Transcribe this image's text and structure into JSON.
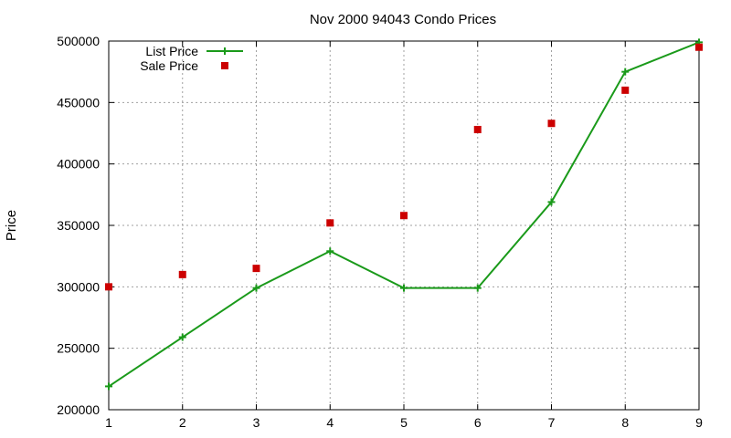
{
  "chart_data": {
    "type": "line",
    "title": "Nov 2000 94043 Condo Prices",
    "xlabel": "",
    "ylabel": "Price",
    "x": [
      1,
      2,
      3,
      4,
      5,
      6,
      7,
      8,
      9
    ],
    "xlim": [
      1,
      9
    ],
    "ylim": [
      200000,
      500000
    ],
    "xticks": [
      1,
      2,
      3,
      4,
      5,
      6,
      7,
      8,
      9
    ],
    "yticks": [
      200000,
      250000,
      300000,
      350000,
      400000,
      450000,
      500000
    ],
    "grid": true,
    "legend_position": "top-left",
    "series": [
      {
        "name": "List Price",
        "style": "linespoints",
        "marker": "plus",
        "color": "#1a9a1a",
        "values": [
          219000,
          259000,
          299000,
          329000,
          299000,
          299000,
          369000,
          475000,
          499000
        ]
      },
      {
        "name": "Sale Price",
        "style": "points",
        "marker": "square",
        "color": "#cc0000",
        "values": [
          300000,
          310000,
          315000,
          352000,
          358000,
          428000,
          433000,
          460000,
          495000
        ]
      }
    ]
  }
}
